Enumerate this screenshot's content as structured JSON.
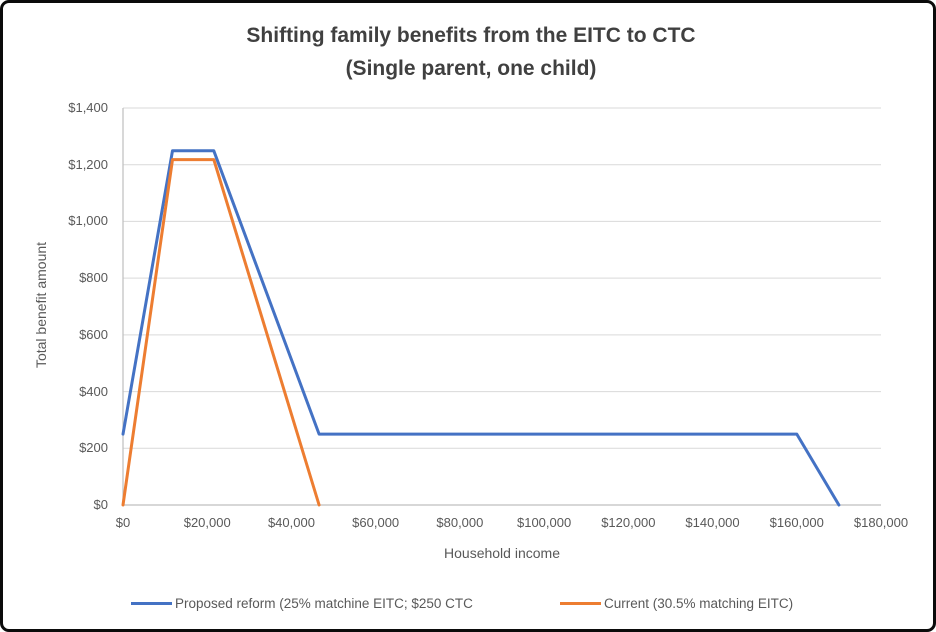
{
  "chart_data": {
    "type": "line",
    "title": "Shifting family benefits from the EITC to CTC",
    "subtitle": "(Single parent, one child)",
    "xlabel": "Household income",
    "ylabel": "Total benefit amount",
    "xlim": [
      0,
      180000
    ],
    "ylim": [
      0,
      1400
    ],
    "grid": "horizontal-on",
    "legend_position": "bottom",
    "colors": {
      "proposed_line": "#4472C4",
      "current_line": "#ED7D31",
      "gridline": "#D9D9D9",
      "axis_line": "#BFBFBF",
      "tick_text": "#595959",
      "title_text": "#404040"
    },
    "x_ticks": {
      "values": [
        0,
        20000,
        40000,
        60000,
        80000,
        100000,
        120000,
        140000,
        160000,
        180000
      ],
      "labels": [
        "$0",
        "$20,000",
        "$40,000",
        "$60,000",
        "$80,000",
        "$100,000",
        "$120,000",
        "$140,000",
        "$160,000",
        "$180,000"
      ]
    },
    "y_ticks": {
      "values": [
        0,
        200,
        400,
        600,
        800,
        1000,
        1200,
        1400
      ],
      "labels": [
        "$0",
        "$200",
        "$400",
        "$600",
        "$800",
        "$1,000",
        "$1,200",
        "$1,400"
      ]
    },
    "series": [
      {
        "name": "Proposed reform (25% matchine EITC; $250 CTC",
        "color": "#4472C4",
        "points": [
          [
            0,
            250
          ],
          [
            11750,
            1249
          ],
          [
            21560,
            1249
          ],
          [
            46560,
            250
          ],
          [
            160000,
            250
          ],
          [
            170000,
            0
          ]
        ]
      },
      {
        "name": "Current (30.5% matching EITC)",
        "color": "#ED7D31",
        "points": [
          [
            0,
            0
          ],
          [
            11750,
            1218
          ],
          [
            21560,
            1218
          ],
          [
            46560,
            0
          ]
        ]
      }
    ]
  }
}
